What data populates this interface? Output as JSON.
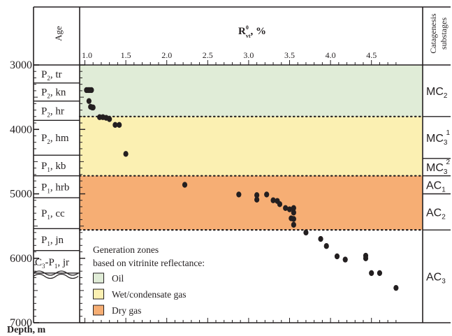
{
  "colors": {
    "oil": "#e0ecd7",
    "wet_gas": "#fbf0b2",
    "dry_gas": "#f6ae74",
    "marker": "#231f20",
    "line": "#231f20"
  },
  "chart_data": {
    "type": "scatter",
    "title": "",
    "xlabel_main": "R",
    "xlabel_sup": "0",
    "xlabel_sub": "vt",
    "xlabel_tail": ", %",
    "ylabel": "Depth, m",
    "age_header": "Age",
    "catagenesis_header_line1": "Catagenesis",
    "catagenesis_header_line2": "substages",
    "xlim": [
      0.95,
      5.0
    ],
    "ylim": [
      3000,
      7000
    ],
    "x_ticks": [
      "1.0",
      "1.5",
      "2.0",
      "2.5",
      "3.0",
      "3.5",
      "4.0",
      "4.5"
    ],
    "x_tick_values": [
      1.0,
      1.5,
      2.0,
      2.5,
      3.0,
      3.5,
      4.0,
      4.5
    ],
    "y_ticks": [
      "3000",
      "4000",
      "5000",
      "6000",
      "7000"
    ],
    "y_tick_values": [
      3000,
      4000,
      5000,
      6000,
      7000
    ],
    "zones": [
      {
        "name": "Oil",
        "from": 3000,
        "to": 3800,
        "color": "#e0ecd7"
      },
      {
        "name": "Wet/condensate gas",
        "from": 3800,
        "to": 4720,
        "color": "#fbf0b2"
      },
      {
        "name": "Dry gas",
        "from": 4720,
        "to": 5560,
        "color": "#f6ae74"
      }
    ],
    "zone_boundaries": [
      3800,
      4720,
      5560
    ],
    "ages": [
      {
        "base": "P",
        "sub": "2",
        "name": ", tr",
        "from": 3000,
        "to": 3280
      },
      {
        "base": "P",
        "sub": "2",
        "name": ", kn",
        "from": 3280,
        "to": 3560
      },
      {
        "base": "P",
        "sub": "2",
        "name": ", hr",
        "from": 3560,
        "to": 3860
      },
      {
        "base": "P",
        "sub": "2",
        "name": ", hm",
        "from": 3860,
        "to": 4400
      },
      {
        "base": "P",
        "sub": "1",
        "name": ", kb",
        "from": 4400,
        "to": 4720
      },
      {
        "base": "P",
        "sub": "1",
        "name": ", hrb",
        "from": 4720,
        "to": 5060
      },
      {
        "base": "P",
        "sub": "1",
        "name": ", cc",
        "from": 5060,
        "to": 5540
      },
      {
        "base": "P",
        "sub": "1",
        "name": ", jn",
        "from": 5540,
        "to": 5880
      },
      {
        "base": "C",
        "sub": "3",
        "name": "-P",
        "sub2": "1",
        "name2": ", jr",
        "from": 5880,
        "to": 6230
      }
    ],
    "substages": [
      {
        "base": "MC",
        "sub": "2",
        "sup": "",
        "from": 3000,
        "to": 3800
      },
      {
        "base": "MC",
        "sub": "3",
        "sup": "1",
        "from": 3800,
        "to": 4450
      },
      {
        "base": "MC",
        "sub": "3",
        "sup": "2",
        "from": 4450,
        "to": 4720
      },
      {
        "base": "AC",
        "sub": "1",
        "sup": "",
        "from": 4720,
        "to": 5000
      },
      {
        "base": "AC",
        "sub": "2",
        "sup": "",
        "from": 5000,
        "to": 5560
      },
      {
        "base": "AC",
        "sub": "3",
        "sup": "",
        "from": 5560,
        "to": 7000
      }
    ],
    "series": [
      {
        "points": [
          [
            1.02,
            3390
          ],
          [
            1.04,
            3390
          ],
          [
            1.06,
            3390
          ],
          [
            1.08,
            3390
          ],
          [
            1.05,
            3560
          ],
          [
            1.07,
            3650
          ],
          [
            1.09,
            3660
          ],
          [
            1.1,
            3660
          ],
          [
            1.18,
            3810
          ],
          [
            1.22,
            3810
          ],
          [
            1.26,
            3820
          ],
          [
            1.3,
            3840
          ],
          [
            1.37,
            3930
          ],
          [
            1.42,
            3930
          ],
          [
            1.5,
            4380
          ],
          [
            2.22,
            4860
          ],
          [
            2.88,
            5010
          ],
          [
            3.1,
            5020
          ],
          [
            3.1,
            5090
          ],
          [
            3.22,
            5010
          ],
          [
            3.3,
            5100
          ],
          [
            3.35,
            5110
          ],
          [
            3.38,
            5160
          ],
          [
            3.45,
            5220
          ],
          [
            3.5,
            5240
          ],
          [
            3.55,
            5220
          ],
          [
            3.55,
            5290
          ],
          [
            3.52,
            5380
          ],
          [
            3.55,
            5390
          ],
          [
            3.55,
            5480
          ],
          [
            3.7,
            5600
          ],
          [
            3.88,
            5700
          ],
          [
            3.95,
            5810
          ],
          [
            4.08,
            5970
          ],
          [
            4.18,
            6020
          ],
          [
            4.43,
            5960
          ],
          [
            4.43,
            6000
          ],
          [
            4.5,
            6230
          ],
          [
            4.6,
            6230
          ],
          [
            4.8,
            6460
          ]
        ]
      }
    ]
  },
  "legend": {
    "title_line1": "Generation zones",
    "title_line2": "based on vitrinite reflectance:",
    "items": [
      {
        "label": "Oil",
        "color": "#e0ecd7"
      },
      {
        "label": "Wet/condensate gas",
        "color": "#fbf0b2"
      },
      {
        "label": "Dry gas",
        "color": "#f6ae74"
      }
    ]
  }
}
